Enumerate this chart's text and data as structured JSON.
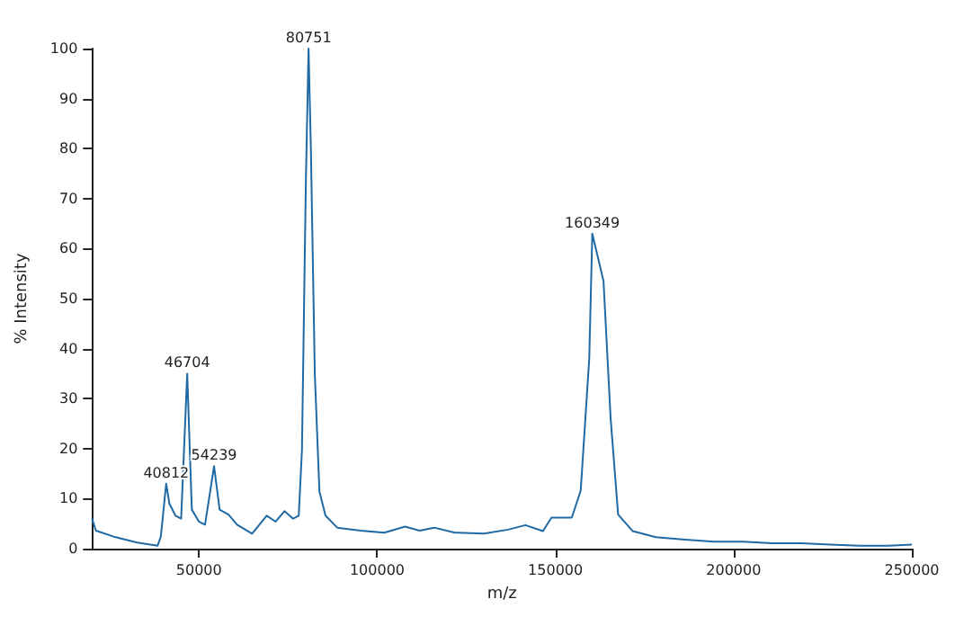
{
  "chart_data": {
    "type": "line",
    "xlabel": "m/z",
    "ylabel": "% Intensity",
    "xlim": [
      20000,
      250000
    ],
    "xticks": [
      50000,
      100000,
      150000,
      200000,
      250000
    ],
    "ylim": [
      0,
      100
    ],
    "yticks": [
      0,
      10,
      20,
      30,
      40,
      50,
      60,
      70,
      80,
      90,
      100
    ],
    "marker": "none",
    "line_style": "solid",
    "series": [
      {
        "color": "#1f6aa5",
        "x": [
          20000,
          21100,
          26100,
          32700,
          38400,
          39300,
          40812,
          41700,
          43400,
          45000,
          46704,
          48000,
          50000,
          51700,
          54239,
          55800,
          58300,
          60700,
          64900,
          69000,
          71500,
          74000,
          76400,
          78000,
          78900,
          80000,
          80751,
          81400,
          82500,
          83800,
          85500,
          88800,
          95400,
          102000,
          107800,
          111900,
          116000,
          121800,
          130000,
          136700,
          141600,
          146500,
          148900,
          154600,
          157100,
          159500,
          160349,
          163500,
          165500,
          167600,
          171700,
          178200,
          186400,
          194500,
          202700,
          210800,
          219000,
          227100,
          235300,
          243500,
          250000
        ],
        "values": [
          6,
          3.6,
          2.4,
          1.2,
          0.6,
          2.4,
          13,
          9,
          6.6,
          6,
          35,
          7.8,
          5.4,
          4.8,
          16.5,
          7.8,
          6.8,
          4.8,
          3,
          6.6,
          5.4,
          7.5,
          6,
          6.6,
          19.8,
          73.7,
          100,
          80,
          35,
          11.4,
          6.6,
          4.2,
          3.6,
          3.2,
          4.4,
          3.6,
          4.2,
          3.2,
          3,
          3.8,
          4.7,
          3.5,
          6.2,
          6.2,
          11.6,
          38,
          63,
          53.5,
          26,
          6.8,
          3.5,
          2.3,
          1.8,
          1.4,
          1.4,
          1.1,
          1.1,
          0.8,
          0.6,
          0.6,
          0.8
        ]
      }
    ],
    "annotations": [
      {
        "text": "40812",
        "x": 40812,
        "y": 13
      },
      {
        "text": "46704",
        "x": 46704,
        "y": 35
      },
      {
        "text": "54239",
        "x": 54239,
        "y": 16.5
      },
      {
        "text": "80751",
        "x": 80751,
        "y": 100
      },
      {
        "text": "160349",
        "x": 160349,
        "y": 63
      }
    ]
  }
}
